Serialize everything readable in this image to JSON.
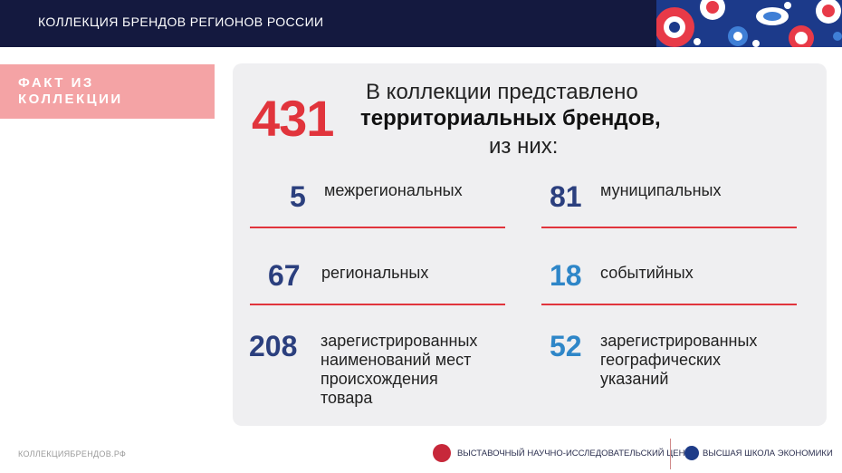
{
  "header": {
    "title": "КОЛЛЕКЦИЯ БРЕНДОВ РЕГИОНОВ РОССИИ"
  },
  "fact_label": {
    "line1": "ФАКТ ИЗ",
    "line2": "КОЛЛЕКЦИИ"
  },
  "intro": {
    "total": "431",
    "line1": "В коллекции представлено",
    "line2": "территориальных брендов,",
    "line3": "из них:"
  },
  "stats": [
    {
      "value": "5",
      "text": "межрегиональных"
    },
    {
      "value": "81",
      "text": "муниципальных"
    },
    {
      "value": "67",
      "text": "региональных"
    },
    {
      "value": "18",
      "text": "событийных"
    },
    {
      "value": "208",
      "text_lines": [
        "зарегистрированных",
        "наименований мест",
        "происхождения",
        "товара"
      ]
    },
    {
      "value": "52",
      "text_lines": [
        "зарегистрированных",
        "географических",
        "указаний"
      ]
    }
  ],
  "footer": {
    "site": "КОЛЛЕКЦИЯБРЕНДОВ.РФ",
    "org1": "ВЫСТАВОЧНЫЙ НАУЧНО-ИССЛЕДОВАТЕЛЬСКИЙ ЦЕНТР",
    "org2": "ВЫСШАЯ ШКОЛА ЭКОНОМИКИ"
  },
  "colors": {
    "navy": "#14193f",
    "accent": "#e1343c",
    "pink": "#f4a3a5",
    "stat_navy": "#2b3f7e",
    "stat_blue": "#2e86c8"
  }
}
